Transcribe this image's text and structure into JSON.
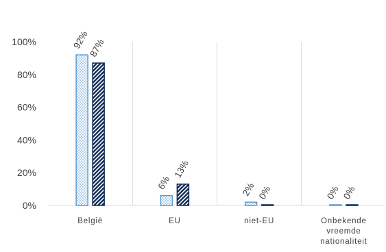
{
  "chart_data": {
    "type": "bar",
    "categories": [
      [
        "België"
      ],
      [
        "EU"
      ],
      [
        "niet-EU"
      ],
      [
        "Onbekende",
        "vreemde",
        "nationaliteit"
      ]
    ],
    "series": [
      {
        "values": [
          92,
          6,
          2,
          0
        ],
        "labels": [
          "92%",
          "6%",
          "2%",
          "0%"
        ],
        "color": "#5b9bd5",
        "pattern": "light-dots"
      },
      {
        "values": [
          87,
          13,
          0,
          0
        ],
        "labels": [
          "87%",
          "13%",
          "0%",
          "0%"
        ],
        "color": "#0d2a55",
        "pattern": "dense-diagonal"
      }
    ],
    "y_ticks": [
      "0%",
      "20%",
      "40%",
      "60%",
      "80%",
      "100%"
    ],
    "ylim": [
      0,
      100
    ],
    "grid": "vertical category separators",
    "legend": "none",
    "colors": {
      "separator": "#d9d9d9",
      "text": "#404040"
    }
  }
}
